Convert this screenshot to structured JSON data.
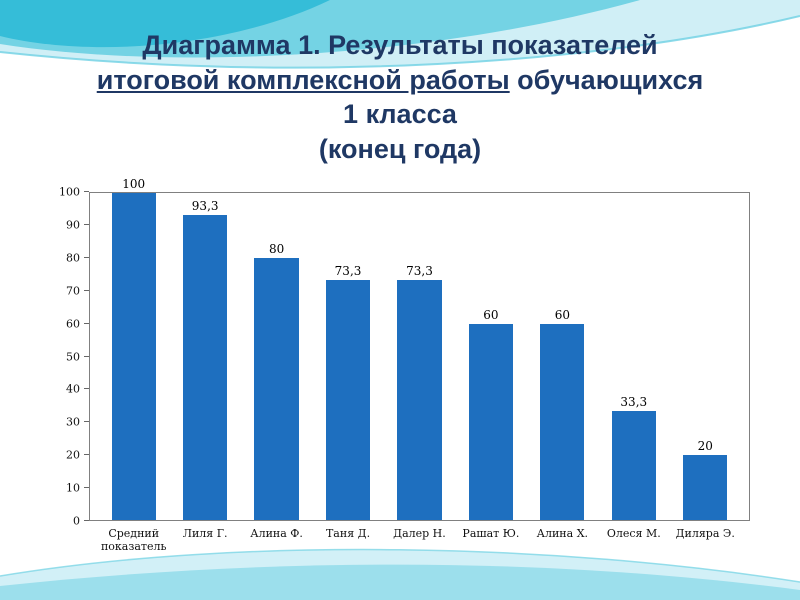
{
  "slide": {
    "title": {
      "line1": "Диаграмма 1. Результаты показателей",
      "line2_underlined": "итоговой комплексной работы",
      "line2_rest": " обучающихся",
      "line3": "1 класса",
      "line4": "(конец года)"
    },
    "colors": {
      "title": "#1F3864",
      "bar": "#1e6fbf",
      "wave_light": "#cdeef6",
      "wave_mid": "#6fd1e3",
      "wave_dark": "#35bdd8"
    }
  },
  "chart_data": {
    "type": "bar",
    "title": "Диаграмма 1. Результаты показателей итоговой комплексной работы обучающихся 1 класса (конец года)",
    "categories": [
      "Средний показатель",
      "Лиля Г.",
      "Алина Ф.",
      "Таня Д.",
      "Далер Н.",
      "Рашат Ю.",
      "Алина Х.",
      "Олеся М.",
      "Диляра Э."
    ],
    "values": [
      100,
      93.3,
      80,
      73.3,
      73.3,
      60,
      60,
      33.3,
      20
    ],
    "data_labels": [
      "100",
      "93,3",
      "80",
      "73,3",
      "73,3",
      "60",
      "60",
      "33,3",
      "20"
    ],
    "xlabel": "",
    "ylabel": "",
    "ylim": [
      0,
      100
    ],
    "yticks": [
      0,
      10,
      20,
      30,
      40,
      50,
      60,
      70,
      80,
      90,
      100
    ],
    "grid": false,
    "legend": "none",
    "bar_color": "#1e6fbf"
  }
}
